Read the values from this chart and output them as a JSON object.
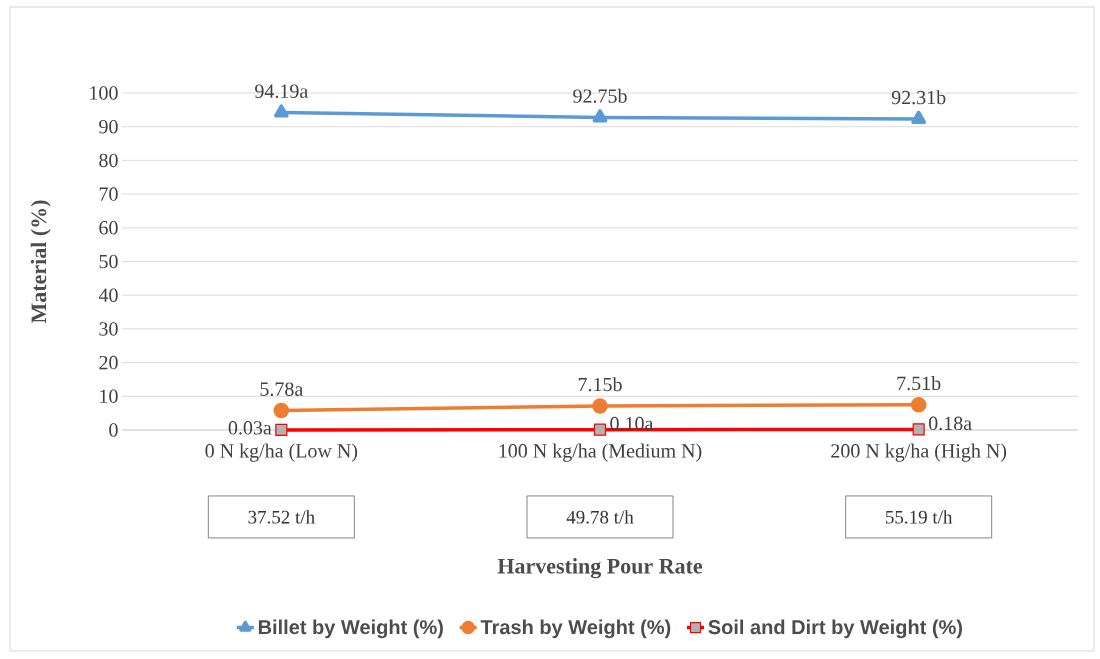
{
  "chart_data": {
    "type": "line",
    "xlabel": "Harvesting Pour Rate",
    "ylabel": "Material (%)",
    "categories": [
      "0 N kg/ha (Low N)",
      "100 N kg/ha (Medium N)",
      "200 N kg/ha (High N)"
    ],
    "series": [
      {
        "name": "Billet by Weight (%)",
        "color": "#5b9bd5",
        "marker": "triangle",
        "values": [
          94.19,
          92.75,
          92.31
        ],
        "value_labels": [
          "94.19a",
          "92.75b",
          "92.31b"
        ]
      },
      {
        "name": "Trash by Weight (%)",
        "color": "#ed7d31",
        "marker": "circle",
        "values": [
          5.78,
          7.15,
          7.51
        ],
        "value_labels": [
          "5.78a",
          "7.15b",
          "7.51b"
        ]
      },
      {
        "name": "Soil and Dirt by Weight (%)",
        "color": "#ff0000",
        "marker": "square",
        "values": [
          0.03,
          0.1,
          0.18
        ],
        "value_labels": [
          "0.03a",
          "0.10a",
          "0.18a"
        ]
      }
    ],
    "annotations": [
      "37.52 t/h",
      "49.78 t/h",
      "55.19 t/h"
    ],
    "ylim": [
      0,
      100
    ],
    "yticks": [
      0,
      10,
      20,
      30,
      40,
      50,
      60,
      70,
      80,
      90,
      100
    ],
    "grid": "y",
    "legend": "bottom",
    "line_style": "solid"
  }
}
